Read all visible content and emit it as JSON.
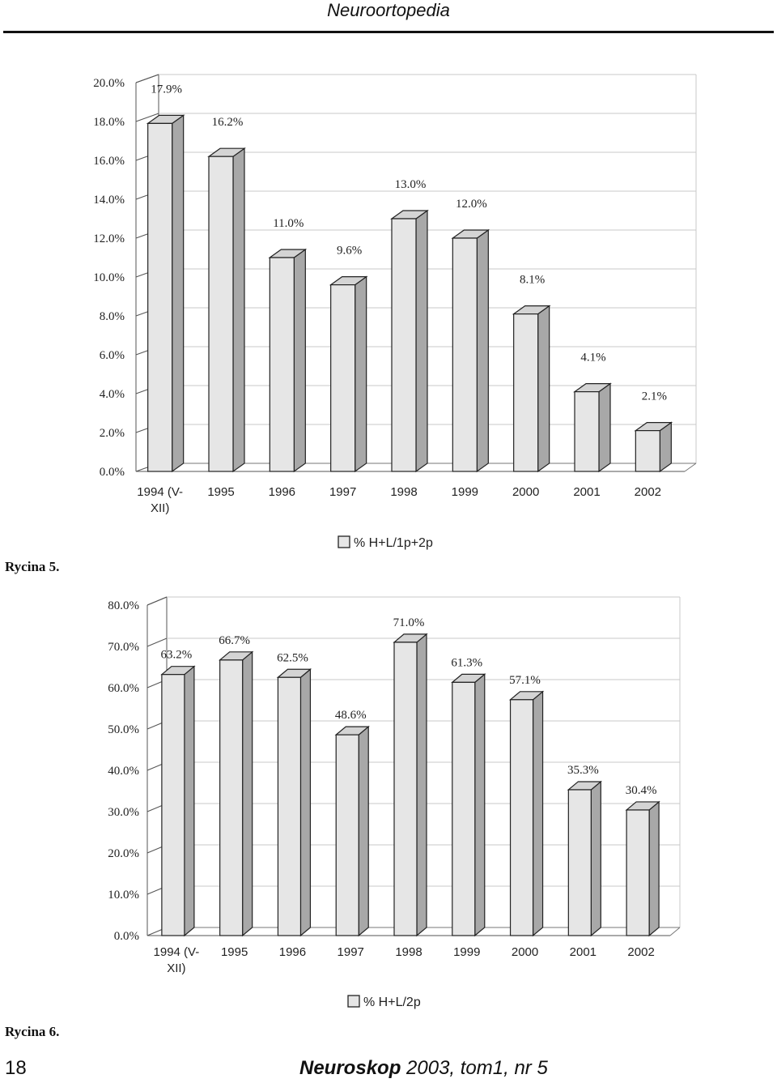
{
  "header": {
    "title": "Neuroortopedia"
  },
  "footer": {
    "page_number": "18",
    "journal_name": "Neuroskop",
    "journal_rest": " 2003, tom1, nr 5"
  },
  "figures": [
    {
      "caption": "Rycina 5."
    },
    {
      "caption": "Rycina 6."
    }
  ],
  "colors": {
    "bar_front": "#e6e6e6",
    "bar_side": "#a8a8a8",
    "bar_top": "#d4d4d4",
    "grid": "#c8c8c8"
  },
  "chart_data": [
    {
      "type": "bar",
      "categories": [
        "1994 (V-XII)",
        "1995",
        "1996",
        "1997",
        "1998",
        "1999",
        "2000",
        "2001",
        "2002"
      ],
      "category_lines": [
        [
          "1994 (V-",
          "XII)"
        ],
        [
          "1995"
        ],
        [
          "1996"
        ],
        [
          "1997"
        ],
        [
          "1998"
        ],
        [
          "1999"
        ],
        [
          "2000"
        ],
        [
          "2001"
        ],
        [
          "2002"
        ]
      ],
      "series": [
        {
          "name": "% H+L/1p+2p",
          "values": [
            17.9,
            16.2,
            11.0,
            9.6,
            13.0,
            12.0,
            8.1,
            4.1,
            2.1
          ]
        }
      ],
      "data_labels": [
        "17.9%",
        "16.2%",
        "11.0%",
        "9.6%",
        "13.0%",
        "12.0%",
        "8.1%",
        "4.1%",
        "2.1%"
      ],
      "ylim": [
        0,
        20
      ],
      "yticks": [
        0,
        2,
        4,
        6,
        8,
        10,
        12,
        14,
        16,
        18,
        20
      ],
      "ytick_labels": [
        "0.0%",
        "2.0%",
        "4.0%",
        "6.0%",
        "8.0%",
        "10.0%",
        "12.0%",
        "14.0%",
        "16.0%",
        "18.0%",
        "20.0%"
      ],
      "grid": true,
      "legend": "bottom-center",
      "style": "3d-column"
    },
    {
      "type": "bar",
      "categories": [
        "1994 (V-XII)",
        "1995",
        "1996",
        "1997",
        "1998",
        "1999",
        "2000",
        "2001",
        "2002"
      ],
      "category_lines": [
        [
          "1994 (V-",
          "XII)"
        ],
        [
          "1995"
        ],
        [
          "1996"
        ],
        [
          "1997"
        ],
        [
          "1998"
        ],
        [
          "1999"
        ],
        [
          "2000"
        ],
        [
          "2001"
        ],
        [
          "2002"
        ]
      ],
      "series": [
        {
          "name": "% H+L/2p",
          "values": [
            63.2,
            66.7,
            62.5,
            48.6,
            71.0,
            61.3,
            57.1,
            35.3,
            30.4
          ]
        }
      ],
      "data_labels": [
        "63.2%",
        "66.7%",
        "62.5%",
        "48.6%",
        "71.0%",
        "61.3%",
        "57.1%",
        "35.3%",
        "30.4%"
      ],
      "ylim": [
        0,
        80
      ],
      "yticks": [
        0,
        10,
        20,
        30,
        40,
        50,
        60,
        70,
        80
      ],
      "ytick_labels": [
        "0.0%",
        "10.0%",
        "20.0%",
        "30.0%",
        "40.0%",
        "50.0%",
        "60.0%",
        "70.0%",
        "80.0%"
      ],
      "grid": true,
      "legend": "bottom-center",
      "style": "3d-column"
    }
  ]
}
